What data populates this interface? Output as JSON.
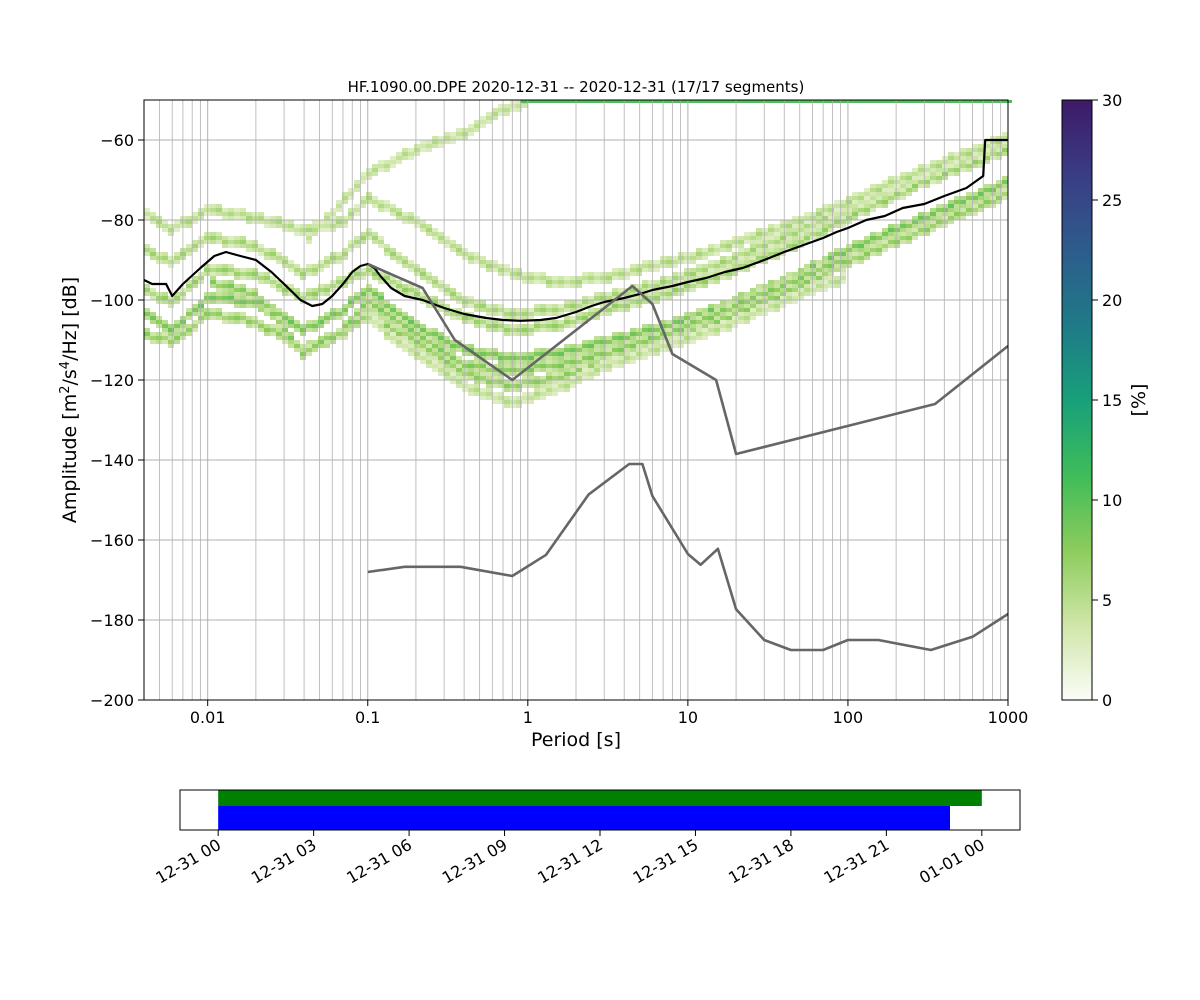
{
  "chart_data": [
    {
      "type": "heatmap",
      "title": "HF.1090.00.DPE   2020-12-31 -- 2020-12-31  (17/17 segments)",
      "xlabel": "Period [s]",
      "ylabel": "Amplitude [m²/s⁴/Hz] [dB]",
      "x_scale": "log",
      "xlim": [
        0.004,
        1000
      ],
      "ylim": [
        -200,
        -50
      ],
      "x_ticks": [
        0.01,
        0.1,
        1,
        10,
        100,
        1000
      ],
      "x_tick_labels": [
        "0.01",
        "0.1",
        "1",
        "10",
        "100",
        "1000"
      ],
      "y_ticks": [
        -60,
        -80,
        -100,
        -120,
        -140,
        -160,
        -180,
        -200
      ],
      "y_tick_labels": [
        "−60",
        "−80",
        "−100",
        "−120",
        "−140",
        "−160",
        "−180",
        "−200"
      ],
      "grid": true,
      "colorbar": {
        "label": "[%]",
        "range": [
          0,
          30
        ],
        "ticks": [
          0,
          5,
          10,
          15,
          20,
          25,
          30
        ],
        "tick_labels": [
          "0",
          "5",
          "10",
          "15",
          "20",
          "25",
          "30"
        ],
        "colormap_stops": [
          "#fbfdf9",
          "#cfe6a8",
          "#8ccc5c",
          "#3fbc5a",
          "#18a07a",
          "#1f7a88",
          "#2d5c8c",
          "#3a3d84",
          "#3d1a68"
        ]
      },
      "psd_bands": [
        {
          "intensity": 0.18,
          "points": [
            [
              0.004,
              -97
            ],
            [
              0.006,
              -100
            ],
            [
              0.01,
              -92
            ],
            [
              0.02,
              -93
            ],
            [
              0.04,
              -99
            ],
            [
              0.07,
              -95
            ],
            [
              0.1,
              -92
            ],
            [
              0.2,
              -98
            ],
            [
              0.4,
              -104
            ],
            [
              0.8,
              -107
            ],
            [
              1.5,
              -106
            ],
            [
              3,
              -102
            ],
            [
              6,
              -99
            ],
            [
              10,
              -96
            ],
            [
              20,
              -92
            ],
            [
              50,
              -85
            ],
            [
              100,
              -79
            ],
            [
              300,
              -70
            ],
            [
              1000,
              -62
            ]
          ]
        },
        {
          "intensity": 0.25,
          "points": [
            [
              0.004,
              -103
            ],
            [
              0.006,
              -107
            ],
            [
              0.01,
              -99
            ],
            [
              0.02,
              -100
            ],
            [
              0.04,
              -107
            ],
            [
              0.07,
              -102
            ],
            [
              0.1,
              -97
            ],
            [
              0.2,
              -106
            ],
            [
              0.4,
              -112
            ],
            [
              0.8,
              -114
            ],
            [
              1.5,
              -113
            ],
            [
              3,
              -110
            ],
            [
              6,
              -107
            ],
            [
              10,
              -104
            ],
            [
              20,
              -100
            ],
            [
              50,
              -93
            ],
            [
              100,
              -87
            ],
            [
              300,
              -79
            ],
            [
              1000,
              -70
            ]
          ]
        },
        {
          "intensity": 0.2,
          "points": [
            [
              0.004,
              -108
            ],
            [
              0.006,
              -110
            ],
            [
              0.01,
              -103
            ],
            [
              0.02,
              -105
            ],
            [
              0.04,
              -112
            ],
            [
              0.07,
              -108
            ],
            [
              0.1,
              -103
            ],
            [
              0.2,
              -110
            ],
            [
              0.4,
              -118
            ],
            [
              0.8,
              -121
            ],
            [
              1.5,
              -119
            ],
            [
              3,
              -115
            ],
            [
              6,
              -111
            ],
            [
              10,
              -107
            ],
            [
              20,
              -103
            ],
            [
              50,
              -96
            ],
            [
              100,
              -90
            ],
            [
              300,
              -82
            ],
            [
              1000,
              -73
            ]
          ]
        },
        {
          "intensity": 0.16,
          "points": [
            [
              0.004,
              -87
            ],
            [
              0.006,
              -90
            ],
            [
              0.01,
              -84
            ],
            [
              0.02,
              -86
            ],
            [
              0.04,
              -93
            ],
            [
              0.07,
              -88
            ],
            [
              0.1,
              -83
            ],
            [
              0.2,
              -92
            ],
            [
              0.4,
              -100
            ],
            [
              0.8,
              -103
            ],
            [
              1.5,
              -102
            ],
            [
              3,
              -99
            ],
            [
              6,
              -96
            ],
            [
              10,
              -93
            ],
            [
              20,
              -89
            ],
            [
              50,
              -82
            ],
            [
              100,
              -76
            ],
            [
              300,
              -68
            ],
            [
              1000,
              -60
            ]
          ]
        },
        {
          "intensity": 0.14,
          "points": [
            [
              0.004,
              -78
            ],
            [
              0.006,
              -82
            ],
            [
              0.01,
              -77
            ],
            [
              0.02,
              -79
            ],
            [
              0.04,
              -82
            ],
            [
              0.07,
              -80
            ],
            [
              0.1,
              -74
            ],
            [
              0.2,
              -80
            ],
            [
              0.4,
              -88
            ],
            [
              0.8,
              -93
            ],
            [
              1.5,
              -95
            ],
            [
              3,
              -94
            ],
            [
              6,
              -91
            ],
            [
              10,
              -89
            ],
            [
              20,
              -85
            ],
            [
              50,
              -80
            ],
            [
              100,
              -75
            ],
            [
              300,
              -67
            ],
            [
              1000,
              -59
            ]
          ]
        },
        {
          "intensity": 0.12,
          "points": [
            [
              0.04,
              -85
            ],
            [
              0.07,
              -75
            ],
            [
              0.1,
              -68
            ],
            [
              0.2,
              -62
            ],
            [
              0.4,
              -58
            ],
            [
              0.7,
              -52
            ],
            [
              1,
              -50
            ]
          ]
        },
        {
          "intensity": 0.22,
          "points": [
            [
              0.01,
              -95
            ],
            [
              0.02,
              -98
            ],
            [
              0.04,
              -113
            ],
            [
              0.07,
              -107
            ],
            [
              0.1,
              -100
            ],
            [
              0.2,
              -108
            ],
            [
              0.4,
              -116
            ],
            [
              0.8,
              -117
            ],
            [
              1.5,
              -116
            ],
            [
              3,
              -113
            ],
            [
              6,
              -109
            ],
            [
              10,
              -106
            ],
            [
              20,
              -101
            ],
            [
              50,
              -94
            ],
            [
              100,
              -89
            ]
          ]
        },
        {
          "intensity": 0.12,
          "points": [
            [
              0.1,
              -104
            ],
            [
              0.2,
              -113
            ],
            [
              0.4,
              -121
            ],
            [
              0.8,
              -125
            ],
            [
              1.5,
              -122
            ],
            [
              3,
              -116
            ],
            [
              6,
              -112
            ],
            [
              10,
              -109
            ],
            [
              20,
              -105
            ],
            [
              50,
              -98
            ],
            [
              100,
              -94
            ]
          ]
        }
      ],
      "lines": [
        {
          "name": "",
          "color": "#000000",
          "width": 2.2,
          "points": [
            [
              0.004,
              -95
            ],
            [
              0.0045,
              -96
            ],
            [
              0.0055,
              -96
            ],
            [
              0.006,
              -99
            ],
            [
              0.007,
              -96
            ],
            [
              0.009,
              -92
            ],
            [
              0.011,
              -89
            ],
            [
              0.013,
              -88
            ],
            [
              0.016,
              -89
            ],
            [
              0.02,
              -90
            ],
            [
              0.025,
              -93
            ],
            [
              0.03,
              -96
            ],
            [
              0.038,
              -100
            ],
            [
              0.045,
              -101.5
            ],
            [
              0.052,
              -101
            ],
            [
              0.06,
              -99
            ],
            [
              0.07,
              -96
            ],
            [
              0.08,
              -93
            ],
            [
              0.09,
              -91.5
            ],
            [
              0.1,
              -91
            ],
            [
              0.11,
              -92
            ],
            [
              0.12,
              -94
            ],
            [
              0.14,
              -97
            ],
            [
              0.17,
              -99
            ],
            [
              0.22,
              -100
            ],
            [
              0.3,
              -102
            ],
            [
              0.4,
              -103.5
            ],
            [
              0.55,
              -104.5
            ],
            [
              0.7,
              -105
            ],
            [
              0.9,
              -105.2
            ],
            [
              1.2,
              -105
            ],
            [
              1.5,
              -104.5
            ],
            [
              2,
              -103
            ],
            [
              2.5,
              -101.5
            ],
            [
              3,
              -100.5
            ],
            [
              4,
              -99.5
            ],
            [
              5,
              -98.5
            ],
            [
              6,
              -97.5
            ],
            [
              8,
              -96.5
            ],
            [
              10,
              -95.5
            ],
            [
              13,
              -94.5
            ],
            [
              17,
              -93
            ],
            [
              22,
              -92
            ],
            [
              30,
              -90
            ],
            [
              40,
              -88
            ],
            [
              55,
              -86
            ],
            [
              70,
              -84.5
            ],
            [
              85,
              -83
            ],
            [
              100,
              -82
            ],
            [
              130,
              -80
            ],
            [
              170,
              -79
            ],
            [
              220,
              -77
            ],
            [
              300,
              -76
            ],
            [
              400,
              -74
            ],
            [
              550,
              -72
            ],
            [
              700,
              -69
            ],
            [
              720,
              -60
            ],
            [
              1000,
              -60
            ]
          ]
        },
        {
          "name": "",
          "color": "#666666",
          "width": 2.6,
          "points": [
            [
              0.1,
              -91
            ],
            [
              0.22,
              -97
            ],
            [
              0.35,
              -110
            ],
            [
              0.8,
              -120
            ],
            [
              4.5,
              -96.5
            ],
            [
              6,
              -101
            ],
            [
              8,
              -113.5
            ],
            [
              15,
              -120
            ],
            [
              20,
              -138.5
            ],
            [
              350,
              -126
            ],
            [
              1000,
              -111.5
            ]
          ]
        },
        {
          "name": "",
          "color": "#666666",
          "width": 2.6,
          "points": [
            [
              0.1,
              -168
            ],
            [
              0.17,
              -166.7
            ],
            [
              0.38,
              -166.7
            ],
            [
              0.8,
              -169
            ],
            [
              1.3,
              -163.7
            ],
            [
              2.4,
              -148.6
            ],
            [
              4.3,
              -141
            ],
            [
              5.2,
              -141
            ],
            [
              6,
              -149
            ],
            [
              10,
              -163.5
            ],
            [
              12,
              -166.2
            ],
            [
              15.4,
              -162.2
            ],
            [
              20,
              -177.3
            ],
            [
              30,
              -185
            ],
            [
              44,
              -187.5
            ],
            [
              70,
              -187.5
            ],
            [
              100,
              -185
            ],
            [
              155,
              -185
            ],
            [
              330,
              -187.5
            ],
            [
              600,
              -184.2
            ],
            [
              1000,
              -178.5
            ]
          ]
        }
      ]
    },
    {
      "type": "timeline",
      "x_ticks": [
        "12-31 00",
        "12-31 03",
        "12-31 06",
        "12-31 09",
        "12-31 12",
        "12-31 15",
        "12-31 18",
        "12-31 21",
        "01-01 00"
      ],
      "x_tick_hours": [
        0,
        3,
        6,
        9,
        12,
        15,
        18,
        21,
        24
      ],
      "xlim_hours": [
        -1.2,
        25.2
      ],
      "bars": [
        {
          "color": "#008000",
          "start_hour": 0,
          "end_hour": 24
        },
        {
          "color": "#0000ff",
          "start_hour": 0,
          "end_hour": 23
        }
      ]
    }
  ]
}
